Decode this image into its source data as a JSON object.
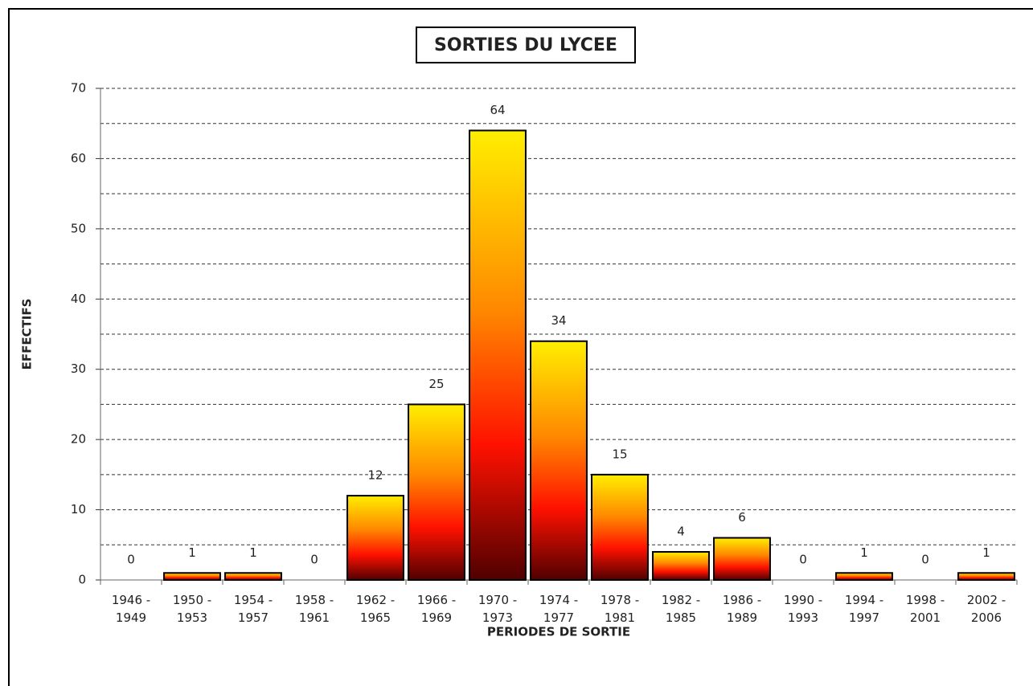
{
  "chart_data": {
    "type": "bar",
    "title": "SORTIES DU LYCEE",
    "x_label": "PERIODES DE SORTIE",
    "y_label": "EFFECTIFS",
    "categories": [
      "1946 - 1949",
      "1950 - 1953",
      "1954 - 1957",
      "1958 - 1961",
      "1962 - 1965",
      "1966 - 1969",
      "1970 - 1973",
      "1974 - 1977",
      "1978 - 1981",
      "1982 - 1985",
      "1986 - 1989",
      "1990 - 1993",
      "1994 - 1997",
      "1998 - 2001",
      "2002 - 2006"
    ],
    "values": [
      0,
      1,
      1,
      0,
      12,
      25,
      64,
      34,
      15,
      4,
      6,
      0,
      1,
      0,
      1
    ],
    "colors": [
      "#ffee00",
      "#ff8800",
      "#ff1100",
      "#500000"
    ],
    "ylim": [
      0,
      70
    ],
    "yticks": [
      0,
      10,
      20,
      30,
      40,
      50,
      60,
      70
    ],
    "minor_yticks": [
      5,
      15,
      25,
      35,
      45,
      55,
      65
    ],
    "grid": true
  }
}
